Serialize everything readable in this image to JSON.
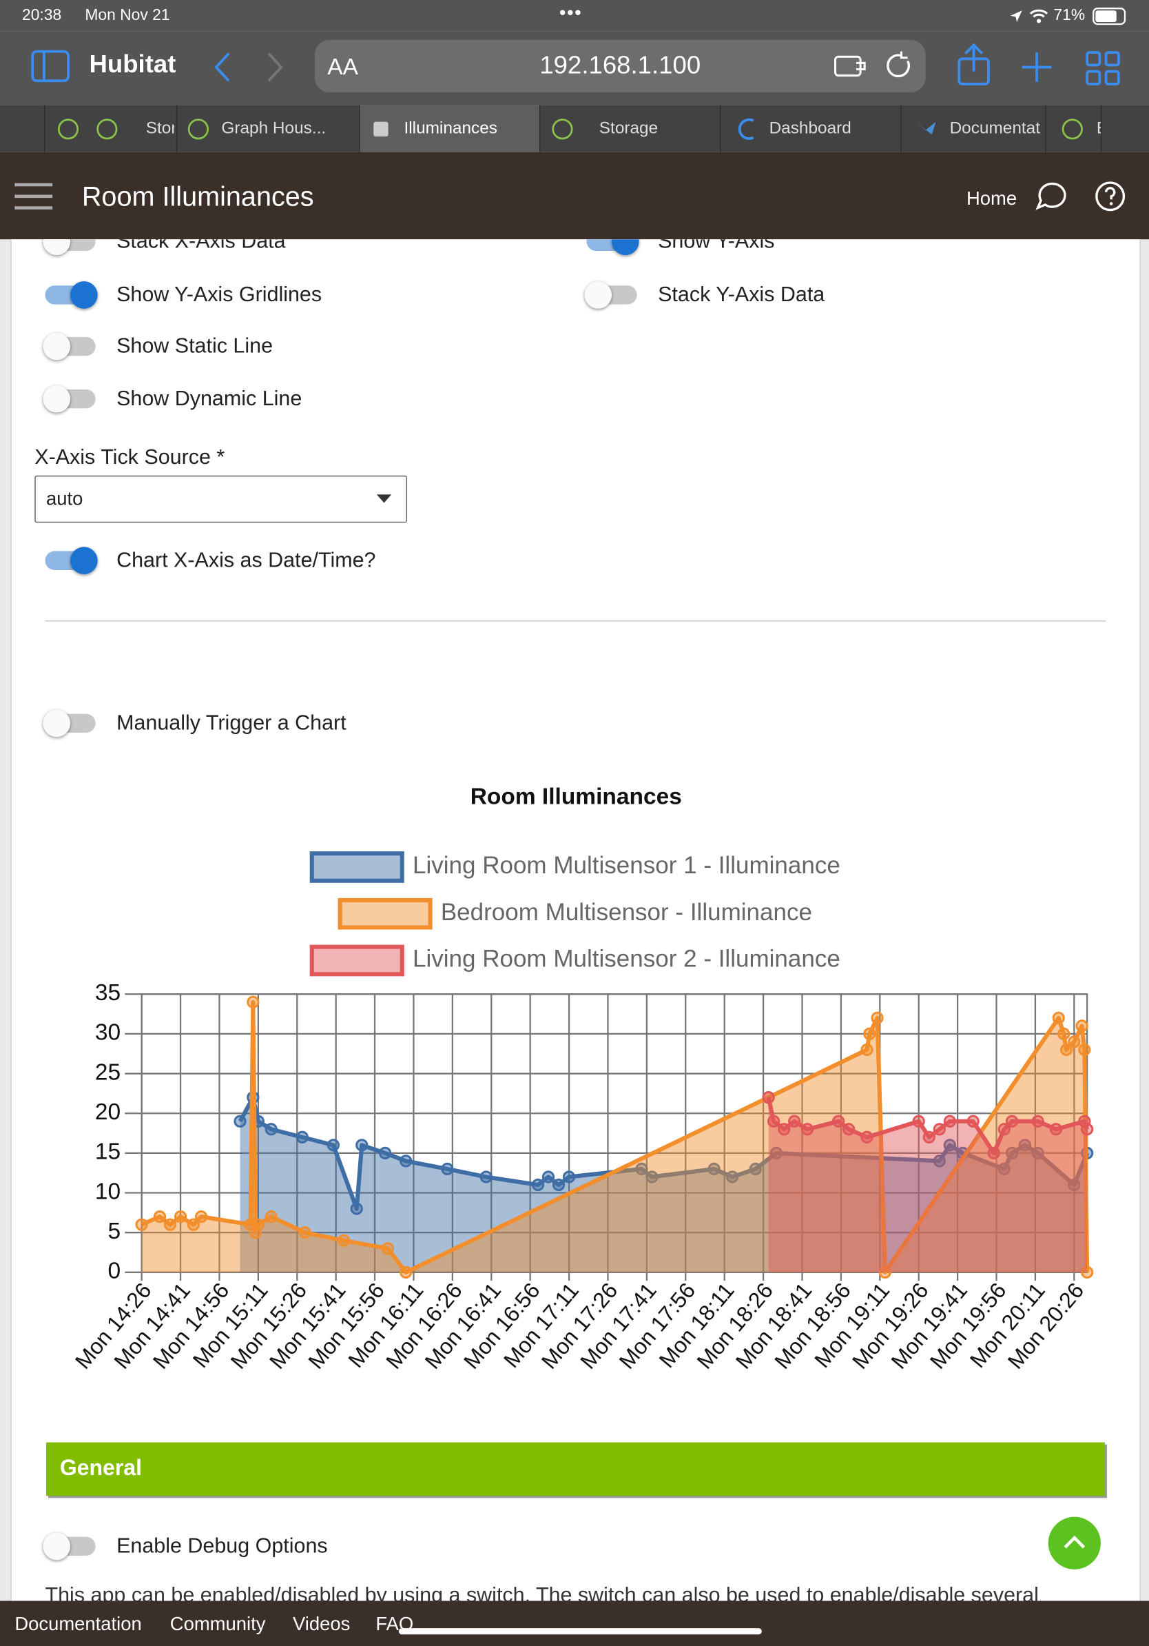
{
  "status_bar": {
    "time": "20:38",
    "date": "Mon Nov 21",
    "battery": "71%"
  },
  "browser": {
    "site": "Hubitat",
    "text_size": "AA",
    "url": "192.168.1.100",
    "tabs": [
      "Stor",
      "Graph Hous...",
      "Illuminances",
      "Storage",
      "Dashboard",
      "Documentat",
      "E"
    ]
  },
  "app_header": {
    "title": "Room Illuminances",
    "home": "Home"
  },
  "settings": {
    "toggles": [
      {
        "label": "Stack X-Axis Data",
        "on": false
      },
      {
        "label": "Show Y-Axis",
        "on": true
      },
      {
        "label": "Show Y-Axis Gridlines",
        "on": true
      },
      {
        "label": "Stack Y-Axis Data",
        "on": false
      },
      {
        "label": "Show Static Line",
        "on": false
      },
      {
        "label": "Show Dynamic Line",
        "on": false
      },
      {
        "label": "Chart X-Axis as Date/Time?",
        "on": true
      },
      {
        "label": "Manually Trigger a Chart",
        "on": false
      },
      {
        "label": "Enable Debug Options",
        "on": false
      }
    ],
    "tick_source_label": "X-Axis Tick Source *",
    "tick_source_value": "auto"
  },
  "chart_data": {
    "type": "line",
    "area": true,
    "title": "Room Illuminances",
    "grid": true,
    "xlim": [
      "Mon 14:26",
      "Mon 20:31"
    ],
    "xticks": [
      "Mon 14:26",
      "Mon 14:41",
      "Mon 14:56",
      "Mon 15:11",
      "Mon 15:26",
      "Mon 15:41",
      "Mon 15:56",
      "Mon 16:11",
      "Mon 16:26",
      "Mon 16:41",
      "Mon 16:56",
      "Mon 17:11",
      "Mon 17:26",
      "Mon 17:41",
      "Mon 17:56",
      "Mon 18:11",
      "Mon 18:26",
      "Mon 18:41",
      "Mon 18:56",
      "Mon 19:11",
      "Mon 19:26",
      "Mon 19:41",
      "Mon 19:56",
      "Mon 20:11",
      "Mon 20:26"
    ],
    "ylim": [
      0,
      35
    ],
    "yticks": [
      0,
      5,
      10,
      15,
      20,
      25,
      30,
      35
    ],
    "series": [
      {
        "name": "Living Room Multisensor 1 - Illuminance",
        "color": "#3f6ea6",
        "x": [
          "Mon 15:04",
          "Mon 15:09",
          "Mon 15:11",
          "Mon 15:16",
          "Mon 15:28",
          "Mon 15:40",
          "Mon 15:49",
          "Mon 15:51",
          "Mon 16:00",
          "Mon 16:08",
          "Mon 16:24",
          "Mon 16:39",
          "Mon 16:59",
          "Mon 17:03",
          "Mon 17:07",
          "Mon 17:11",
          "Mon 17:39",
          "Mon 17:43",
          "Mon 18:07",
          "Mon 18:14",
          "Mon 18:23",
          "Mon 18:31",
          "Mon 19:34",
          "Mon 19:38",
          "Mon 19:43",
          "Mon 19:59",
          "Mon 20:02",
          "Mon 20:07",
          "Mon 20:12",
          "Mon 20:26",
          "Mon 20:31"
        ],
        "values": [
          19,
          22,
          19,
          18,
          17,
          16,
          8,
          16,
          15,
          14,
          13,
          12,
          11,
          12,
          11,
          12,
          13,
          12,
          13,
          12,
          13,
          15,
          14,
          16,
          15,
          13,
          15,
          16,
          15,
          11,
          15
        ]
      },
      {
        "name": "Bedroom Multisensor - Illuminance",
        "color": "#f28e2b",
        "x": [
          "Mon 14:26",
          "Mon 14:33",
          "Mon 14:37",
          "Mon 14:41",
          "Mon 14:46",
          "Mon 14:49",
          "Mon 15:08",
          "Mon 15:09",
          "Mon 15:10",
          "Mon 15:11",
          "Mon 15:16",
          "Mon 15:29",
          "Mon 15:44",
          "Mon 16:01",
          "Mon 16:08",
          "Mon 18:28",
          "Mon 19:06",
          "Mon 19:07",
          "Mon 19:10",
          "Mon 19:13",
          "Mon 20:20",
          "Mon 20:22",
          "Mon 20:23",
          "Mon 20:26",
          "Mon 20:29",
          "Mon 20:30",
          "Mon 20:31"
        ],
        "values": [
          6,
          7,
          6,
          7,
          6,
          7,
          6,
          34,
          5,
          6,
          7,
          5,
          4,
          3,
          0,
          22,
          28,
          30,
          32,
          0,
          32,
          30,
          28,
          29,
          31,
          28,
          0
        ]
      },
      {
        "name": "Living Room Multisensor 2 - Illuminance",
        "color": "#e15759",
        "x": [
          "Mon 18:28",
          "Mon 18:30",
          "Mon 18:34",
          "Mon 18:38",
          "Mon 18:43",
          "Mon 18:55",
          "Mon 18:59",
          "Mon 19:06",
          "Mon 19:26",
          "Mon 19:30",
          "Mon 19:34",
          "Mon 19:38",
          "Mon 19:47",
          "Mon 19:55",
          "Mon 19:59",
          "Mon 20:02",
          "Mon 20:12",
          "Mon 20:19",
          "Mon 20:30",
          "Mon 20:31"
        ],
        "values": [
          22,
          19,
          18,
          19,
          18,
          19,
          18,
          17,
          19,
          17,
          18,
          19,
          19,
          15,
          18,
          19,
          19,
          18,
          19,
          18
        ]
      }
    ]
  },
  "section": {
    "title": "General",
    "text": "This app can be enabled/disabled by using a switch. The switch can also be used to enable/disable several"
  },
  "footer": {
    "links": [
      "Documentation",
      "Community",
      "Videos",
      "FAQ"
    ]
  }
}
